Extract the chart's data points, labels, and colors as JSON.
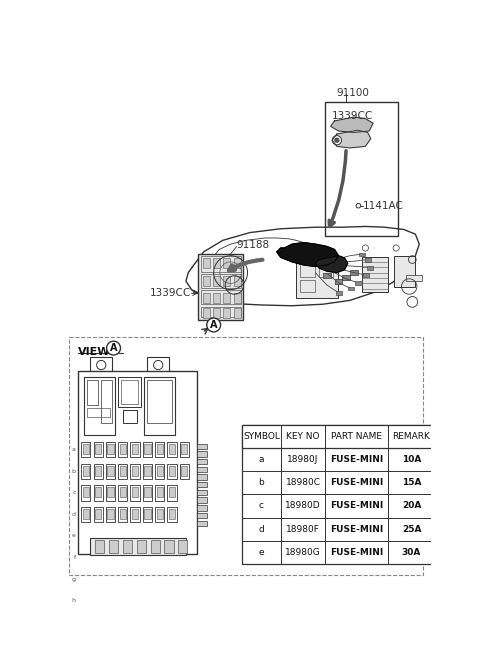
{
  "bg_color": "#ffffff",
  "fig_width": 4.8,
  "fig_height": 6.55,
  "dpi": 100,
  "table_headers": [
    "SYMBOL",
    "KEY NO",
    "PART NAME",
    "REMARK"
  ],
  "table_rows": [
    [
      "a",
      "18980J",
      "FUSE-MINI",
      "10A"
    ],
    [
      "b",
      "18980C",
      "FUSE-MINI",
      "15A"
    ],
    [
      "c",
      "18980D",
      "FUSE-MINI",
      "20A"
    ],
    [
      "d",
      "18980F",
      "FUSE-MINI",
      "25A"
    ],
    [
      "e",
      "18980G",
      "FUSE-MINI",
      "30A"
    ]
  ],
  "label_91100": "91100",
  "label_1339CC_top": "1339CC",
  "label_1141AC": "1141AC",
  "label_91188": "91188",
  "label_1339CC_bot": "1339CC",
  "label_viewA": "VIEW",
  "label_A": "A",
  "line_color": "#333333",
  "light_gray": "#e8e8e8",
  "mid_gray": "#cccccc",
  "dark_gray": "#555555"
}
